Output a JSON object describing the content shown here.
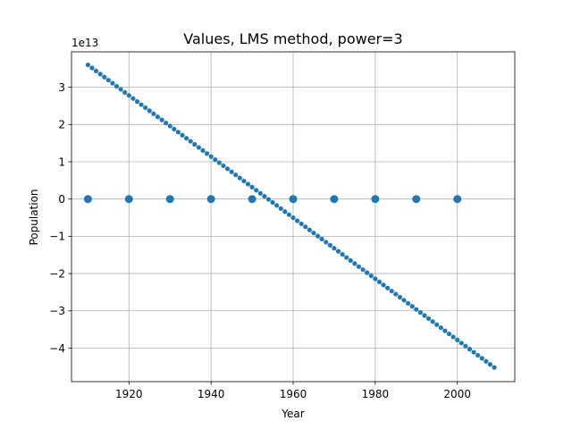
{
  "chart_data": {
    "type": "scatter",
    "title": "Values, LMS method, power=3",
    "xlabel": "Year",
    "ylabel": "Population",
    "y_offset_label": "1e13",
    "grid": true,
    "xlim": [
      1906,
      2014
    ],
    "ylim": [
      -4.9,
      3.95
    ],
    "x_ticks": [
      1920,
      1940,
      1960,
      1980,
      2000
    ],
    "y_ticks": [
      3,
      2,
      1,
      0,
      -1,
      -2,
      -3,
      -4
    ],
    "x_tick_labels": [
      "1920",
      "1940",
      "1960",
      "1980",
      "2000"
    ],
    "y_tick_labels": [
      "3",
      "2",
      "1",
      "0",
      "−1",
      "−2",
      "−3",
      "−4"
    ],
    "colors": {
      "series": "#1f77b4",
      "grid": "#b0b0b0"
    },
    "series": [
      {
        "kind": "observed",
        "x": [
          1910,
          1920,
          1930,
          1940,
          1950,
          1960,
          1970,
          1980,
          1990,
          2000
        ],
        "y": [
          0,
          0,
          0,
          0,
          0,
          0,
          0,
          0,
          0,
          0
        ]
      },
      {
        "kind": "fitted",
        "x_start": 1910,
        "x_end": 2009,
        "x_step": 1,
        "y_start": 3.6,
        "y_end": -4.52
      }
    ]
  }
}
